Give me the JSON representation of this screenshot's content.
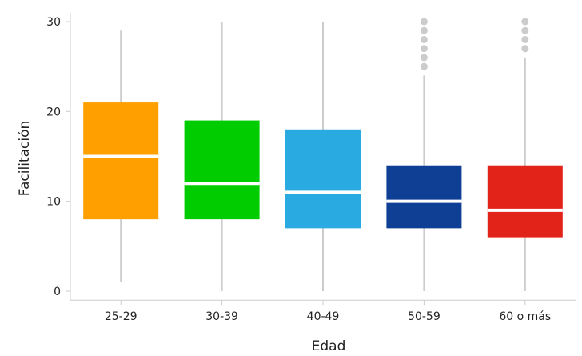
{
  "chart_data": {
    "type": "boxplot",
    "xlabel": "Edad",
    "ylabel": "Facilitación",
    "ylim": [
      -1,
      31
    ],
    "yticks": [
      0,
      10,
      20,
      30
    ],
    "grid": false,
    "whisker_color": "#cccccc",
    "median_color": "#ffffff",
    "categories": [
      "25-29",
      "30-39",
      "40-49",
      "50-59",
      "60 o más"
    ],
    "boxes": [
      {
        "category": "25-29",
        "color": "#ff9f00",
        "whisker_low": 1,
        "q1": 8,
        "median": 15,
        "q3": 21,
        "whisker_high": 29,
        "outliers": []
      },
      {
        "category": "30-39",
        "color": "#00cc00",
        "whisker_low": 0,
        "q1": 8,
        "median": 12,
        "q3": 19,
        "whisker_high": 30,
        "outliers": []
      },
      {
        "category": "40-49",
        "color": "#29abe2",
        "whisker_low": 0,
        "q1": 7,
        "median": 11,
        "q3": 18,
        "whisker_high": 30,
        "outliers": []
      },
      {
        "category": "50-59",
        "color": "#0f3f94",
        "whisker_low": 0,
        "q1": 7,
        "median": 10,
        "q3": 14,
        "whisker_high": 24,
        "outliers": [
          25,
          26,
          27,
          28,
          29,
          30
        ]
      },
      {
        "category": "60 o más",
        "color": "#e2231a",
        "whisker_low": 0,
        "q1": 6,
        "median": 9,
        "q3": 14,
        "whisker_high": 26,
        "outliers": [
          27,
          28,
          29,
          30
        ]
      }
    ]
  }
}
